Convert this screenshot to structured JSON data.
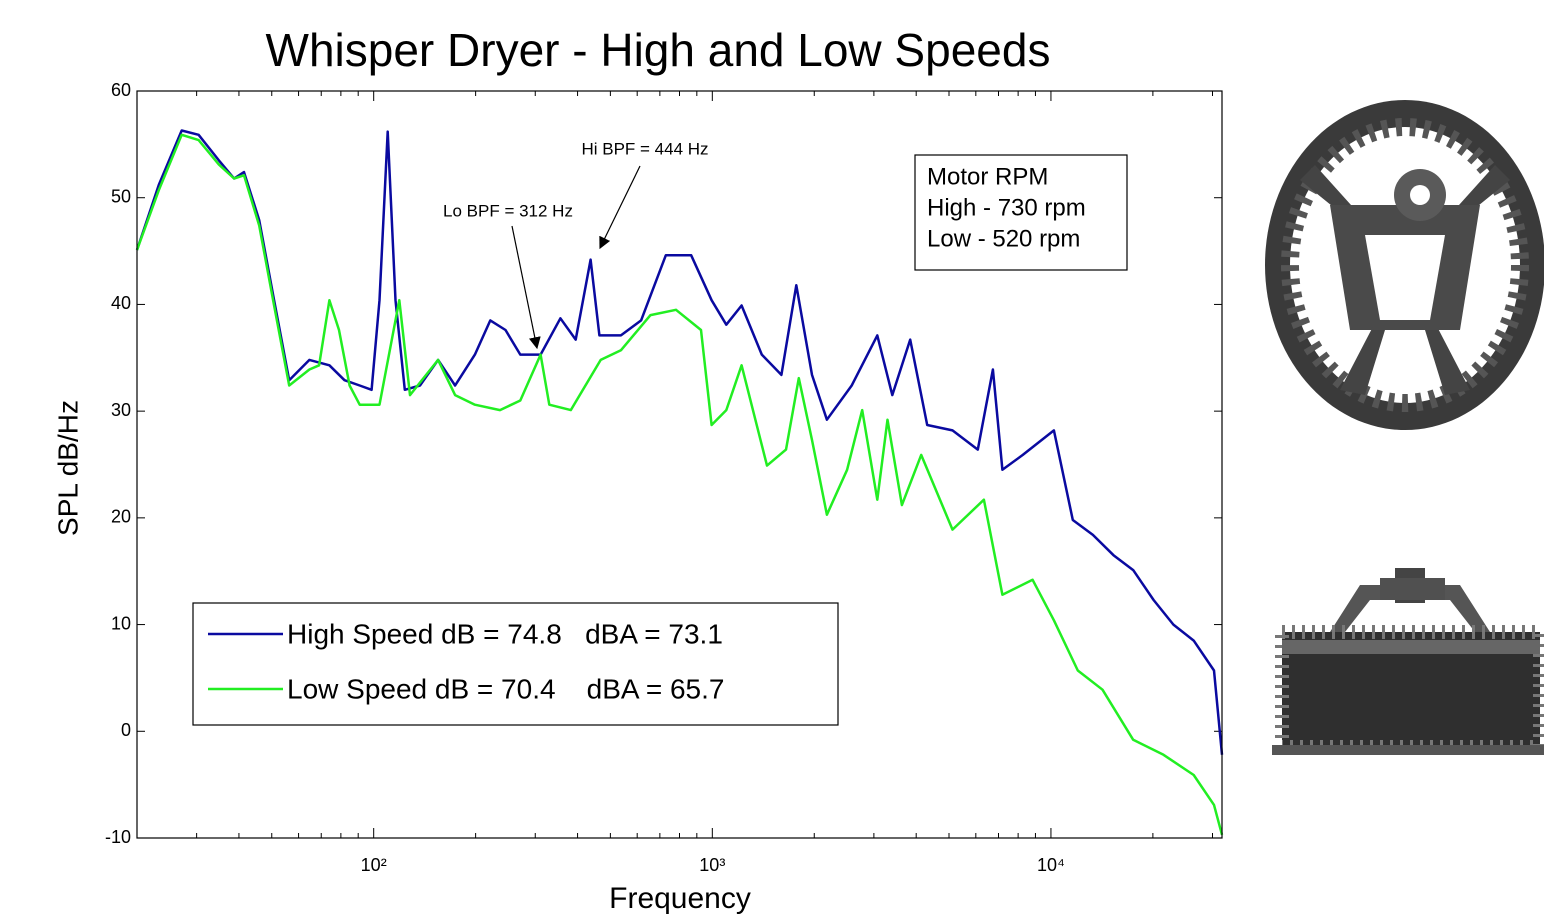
{
  "chart_data": {
    "type": "line",
    "title": "Whisper Dryer - High and Low Speeds",
    "xlabel": "Frequency",
    "ylabel": "SPL dB/Hz",
    "xscale": "log",
    "xlim": [
      20,
      32000
    ],
    "ylim": [
      -10,
      60
    ],
    "xticks": [
      {
        "value": 100,
        "label": "10²"
      },
      {
        "value": 1000,
        "label": "10³"
      },
      {
        "value": 10000,
        "label": "10⁴"
      }
    ],
    "x_minor_ticks": [
      30,
      40,
      50,
      60,
      70,
      80,
      90,
      200,
      300,
      400,
      500,
      600,
      700,
      800,
      900,
      2000,
      3000,
      4000,
      5000,
      6000,
      7000,
      8000,
      9000,
      20000,
      30000
    ],
    "yticks": [
      -10,
      0,
      10,
      20,
      30,
      40,
      50,
      60
    ],
    "legend": "lower left",
    "series": [
      {
        "name": "High Speed dB = 74.8   dBA = 73.1",
        "color": "#0a0aa0",
        "x": [
          20,
          23.2,
          27.1,
          30.4,
          34.9,
          38.7,
          41.4,
          45.9,
          50.8,
          56.3,
          64.6,
          74,
          82,
          90.9,
          98.6,
          104,
          110,
          116,
          123.6,
          137,
          155,
          174,
          199,
          221,
          245,
          271,
          311,
          356,
          395,
          437,
          464,
          537,
          616,
          729,
          866,
          995,
          1100,
          1220,
          1400,
          1600,
          1770,
          1970,
          2180,
          2580,
          3070,
          3400,
          3840,
          4310,
          5120,
          6080,
          6740,
          7190,
          8260,
          10200,
          11600,
          13300,
          15300,
          17500,
          20100,
          23000,
          26400,
          30300,
          32000
        ],
        "values": [
          45.1,
          51.2,
          56.3,
          55.9,
          53.5,
          51.8,
          52.4,
          47.9,
          40.4,
          32.9,
          34.8,
          34.3,
          32.9,
          32.4,
          32,
          40.4,
          56.2,
          40.4,
          32,
          32.4,
          34.8,
          32.4,
          35.3,
          38.5,
          37.6,
          35.3,
          35.3,
          38.7,
          36.7,
          44.2,
          37.1,
          37.1,
          38.5,
          44.6,
          44.6,
          40.4,
          38.1,
          39.9,
          35.3,
          33.4,
          41.8,
          33.4,
          29.2,
          32.4,
          37.1,
          31.5,
          36.7,
          28.7,
          28.2,
          26.4,
          33.9,
          24.5,
          25.9,
          28.2,
          19.8,
          18.4,
          16.5,
          15.1,
          12.3,
          10,
          8.5,
          5.7,
          -2.2
        ]
      },
      {
        "name": "Low Speed dB = 70.4    dBA = 65.7",
        "color": "#22ee22",
        "x": [
          20,
          23.2,
          27.1,
          30.4,
          34.9,
          38.7,
          41.4,
          45.9,
          50.8,
          56.3,
          64.6,
          69,
          74,
          79,
          84.9,
          90.9,
          104,
          119,
          128,
          155,
          174,
          199,
          236,
          271,
          311,
          330,
          382,
          468,
          537,
          657,
          781,
          926,
          995,
          1100,
          1220,
          1450,
          1650,
          1800,
          1970,
          2180,
          2500,
          2770,
          3070,
          3290,
          3630,
          4140,
          5120,
          6340,
          7190,
          8830,
          10200,
          12000,
          14200,
          17500,
          21500,
          26400,
          30300,
          32000
        ],
        "values": [
          45.1,
          50.7,
          55.9,
          55.4,
          53.1,
          51.8,
          52.1,
          47.4,
          39.9,
          32.4,
          33.9,
          34.3,
          40.4,
          37.6,
          32.4,
          30.6,
          30.6,
          40.4,
          31.5,
          34.8,
          31.5,
          30.6,
          30.1,
          31,
          35.3,
          30.6,
          30.1,
          34.8,
          35.7,
          39,
          39.5,
          37.6,
          28.7,
          30.1,
          34.3,
          24.9,
          26.4,
          33.1,
          27.3,
          20.3,
          24.5,
          30.1,
          21.7,
          29.2,
          21.2,
          25.9,
          18.9,
          21.7,
          12.8,
          14.2,
          10.4,
          5.7,
          3.9,
          -0.8,
          -2.2,
          -4.1,
          -6.9,
          -9.7
        ]
      }
    ],
    "annotations": [
      "Lo BPF = 312 Hz",
      "Hi BPF = 444 Hz"
    ],
    "info_box": [
      "Motor RPM",
      "High - 730 rpm",
      "Low - 520 rpm"
    ]
  }
}
